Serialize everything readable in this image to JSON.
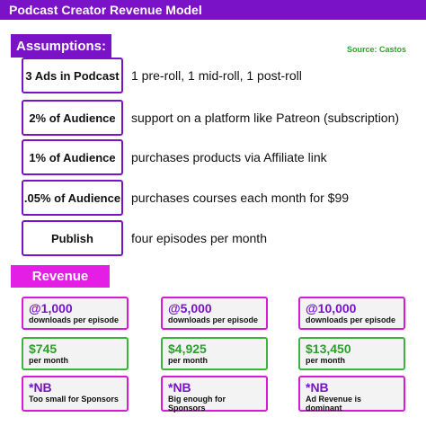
{
  "header": {
    "title": "Podcast Creator Revenue Model"
  },
  "assumptions": {
    "heading": "Assumptions:",
    "source": "Source: Castos",
    "items": [
      {
        "label": "3 Ads in Podcast",
        "text": "1 pre-roll, 1 mid-roll, 1 post-roll"
      },
      {
        "label": "2% of Audience",
        "text": "support on a platform like Patreon (subscription)"
      },
      {
        "label": "1% of Audience",
        "text": "purchases products via Affiliate link"
      },
      {
        "label": ".05% of Audience",
        "text": "purchases courses each month for $99"
      },
      {
        "label": "Publish",
        "text": "four episodes per month"
      }
    ]
  },
  "revenue": {
    "heading": "Revenue",
    "columns": [
      {
        "downloads": "@1,000",
        "downloads_note": "downloads per episode",
        "amount": "$745",
        "amount_note": "per month",
        "nb": "*NB",
        "nb_note": "Too small for Sponsors"
      },
      {
        "downloads": "@5,000",
        "downloads_note": "downloads per episode",
        "amount": "$4,925",
        "amount_note": "per month",
        "nb": "*NB",
        "nb_note": "Big enough for Sponsors"
      },
      {
        "downloads": "@10,000",
        "downloads_note": "downloads per episode",
        "amount": "$13,450",
        "amount_note": "per month",
        "nb": "*NB",
        "nb_note": "Ad Revenue is dominant"
      }
    ]
  }
}
